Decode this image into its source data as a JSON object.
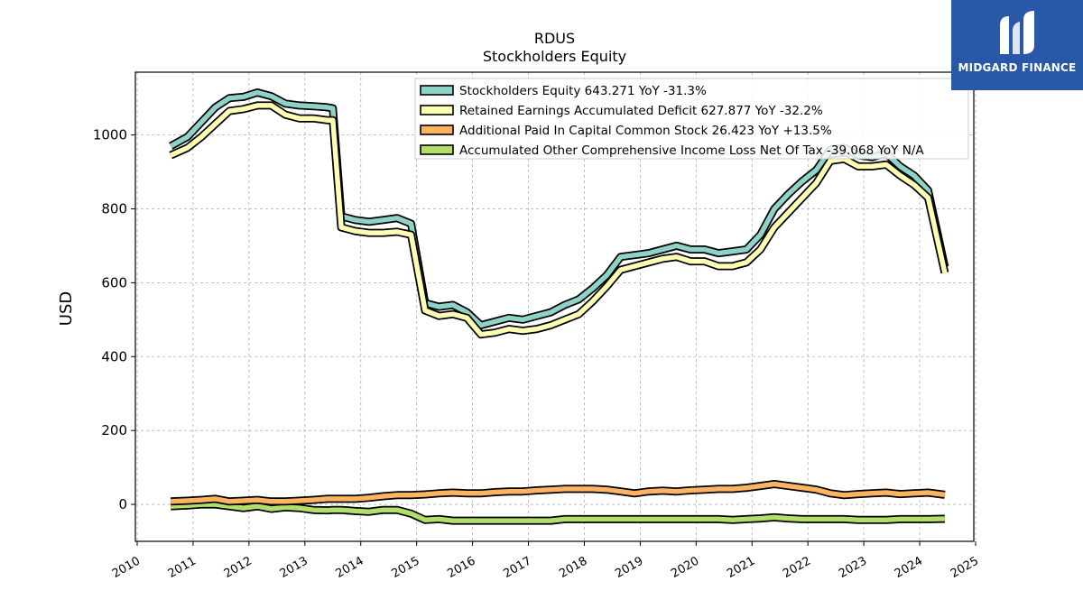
{
  "chart_data": {
    "type": "line",
    "title": "RDUS",
    "subtitle": "Stockholders  Equity",
    "ylabel": "USD",
    "xlabel": "",
    "xlim": [
      2010,
      2025
    ],
    "ylim": [
      -100,
      1170
    ],
    "x_ticks": [
      "2010",
      "2011",
      "2012",
      "2013",
      "2014",
      "2015",
      "2016",
      "2017",
      "2018",
      "2019",
      "2020",
      "2021",
      "2022",
      "2023",
      "2024",
      "2025"
    ],
    "y_ticks": [
      "0",
      "200",
      "400",
      "600",
      "800",
      "1000"
    ],
    "grid": true,
    "legend_position": "top-right",
    "x": [
      2010.6,
      2010.9,
      2011.15,
      2011.4,
      2011.65,
      2011.9,
      2012.15,
      2012.4,
      2012.65,
      2012.9,
      2013.15,
      2013.4,
      2013.5,
      2013.65,
      2013.9,
      2014.15,
      2014.4,
      2014.65,
      2014.9,
      2015.15,
      2015.4,
      2015.65,
      2015.9,
      2016.15,
      2016.4,
      2016.65,
      2016.9,
      2017.15,
      2017.4,
      2017.65,
      2017.9,
      2018.15,
      2018.4,
      2018.65,
      2018.9,
      2019.15,
      2019.4,
      2019.65,
      2019.9,
      2020.15,
      2020.4,
      2020.65,
      2020.9,
      2021.15,
      2021.4,
      2021.65,
      2021.9,
      2022.15,
      2022.4,
      2022.65,
      2022.9,
      2023.15,
      2023.4,
      2023.65,
      2023.9,
      2024.15,
      2024.45
    ],
    "series": [
      {
        "name": "Stockholders Equity  643.271 YoY -31.3%",
        "color": "#8dd3c7",
        "values": [
          970,
          995,
          1035,
          1075,
          1100,
          1103,
          1115,
          1105,
          1085,
          1080,
          1078,
          1075,
          1072,
          780,
          770,
          765,
          770,
          775,
          760,
          545,
          535,
          540,
          520,
          485,
          495,
          505,
          500,
          510,
          520,
          540,
          555,
          585,
          620,
          670,
          675,
          680,
          690,
          700,
          690,
          690,
          680,
          685,
          690,
          730,
          800,
          840,
          875,
          905,
          960,
          965,
          945,
          940,
          950,
          915,
          890,
          850,
          643
        ]
      },
      {
        "name": "Retained Earnings Accumulated Deficit  627.877 YoY -32.2%",
        "color": "#ffffb3",
        "values": [
          945,
          965,
          995,
          1030,
          1065,
          1070,
          1080,
          1080,
          1055,
          1045,
          1045,
          1040,
          1040,
          750,
          740,
          735,
          735,
          738,
          730,
          525,
          510,
          515,
          505,
          460,
          465,
          475,
          470,
          475,
          485,
          500,
          515,
          550,
          590,
          635,
          645,
          655,
          665,
          670,
          658,
          658,
          645,
          645,
          655,
          690,
          750,
          790,
          830,
          870,
          930,
          935,
          915,
          915,
          920,
          890,
          865,
          830,
          627
        ]
      },
      {
        "name": "Additional Paid In Capital Common Stock  26.423 YoY +13.5%",
        "color": "#fdb462",
        "values": [
          8,
          10,
          12,
          15,
          8,
          10,
          12,
          8,
          8,
          10,
          12,
          15,
          15,
          15,
          15,
          18,
          22,
          25,
          25,
          27,
          30,
          32,
          30,
          30,
          33,
          35,
          35,
          38,
          40,
          42,
          42,
          42,
          40,
          35,
          30,
          35,
          37,
          35,
          38,
          40,
          42,
          42,
          45,
          50,
          55,
          50,
          45,
          40,
          30,
          25,
          28,
          30,
          32,
          28,
          30,
          32,
          26
        ]
      },
      {
        "name": "Accumulated Other Comprehensive Income Loss Net Of Tax  -39.068 YoY N/A",
        "color": "#b3de69",
        "values": [
          -5,
          -3,
          0,
          0,
          -5,
          -10,
          -5,
          -12,
          -8,
          -10,
          -15,
          -16,
          -15,
          -15,
          -18,
          -20,
          -15,
          -15,
          -25,
          -42,
          -40,
          -44,
          -44,
          -44,
          -44,
          -44,
          -44,
          -44,
          -44,
          -40,
          -40,
          -40,
          -40,
          -40,
          -40,
          -40,
          -40,
          -40,
          -40,
          -40,
          -40,
          -42,
          -40,
          -38,
          -35,
          -38,
          -40,
          -40,
          -40,
          -40,
          -42,
          -42,
          -42,
          -40,
          -40,
          -40,
          -39
        ]
      }
    ]
  },
  "logo": {
    "text": "MIDGARD FINANCE"
  }
}
